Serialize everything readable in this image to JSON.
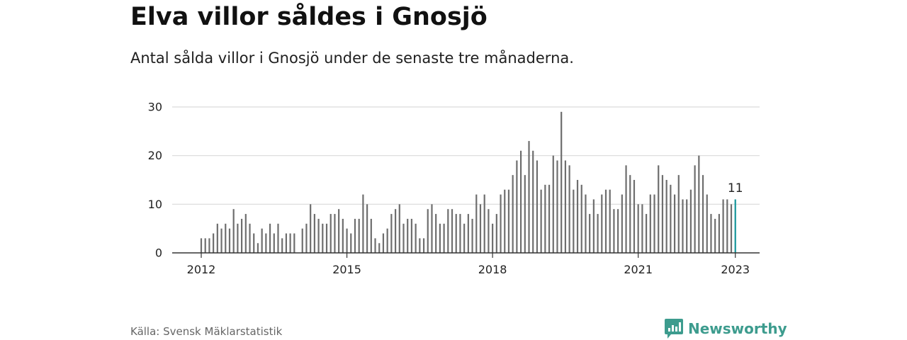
{
  "header": {
    "title": "Elva villor såldes i Gnosjö",
    "subtitle": "Antal sålda villor i Gnosjö under de senaste tre månaderna."
  },
  "footer": {
    "source": "Källa: Svensk Mäklarstatistik",
    "brand": "Newsworthy"
  },
  "colors": {
    "bar": "#6e6e6e",
    "highlight": "#15959a",
    "grid": "#d9d9d9",
    "axis": "#333333",
    "brand": "#3d9c8e"
  },
  "chart_data": {
    "type": "bar",
    "x_start": "2012-01",
    "frequency": "monthly",
    "values": [
      3,
      3,
      3,
      4,
      6,
      5,
      6,
      5,
      9,
      6,
      7,
      8,
      6,
      4,
      2,
      5,
      4,
      6,
      4,
      6,
      3,
      4,
      4,
      4,
      null,
      5,
      6,
      10,
      8,
      7,
      6,
      6,
      8,
      8,
      9,
      7,
      5,
      4,
      7,
      7,
      12,
      10,
      7,
      3,
      2,
      4,
      5,
      8,
      9,
      10,
      6,
      7,
      7,
      6,
      3,
      3,
      9,
      10,
      8,
      6,
      6,
      9,
      9,
      8,
      8,
      6,
      8,
      7,
      12,
      10,
      12,
      9,
      6,
      8,
      12,
      13,
      13,
      16,
      19,
      21,
      16,
      23,
      21,
      19,
      13,
      14,
      14,
      20,
      19,
      29,
      19,
      18,
      13,
      15,
      14,
      12,
      8,
      11,
      8,
      12,
      13,
      13,
      9,
      9,
      12,
      18,
      16,
      15,
      10,
      10,
      8,
      12,
      12,
      18,
      16,
      15,
      14,
      12,
      16,
      11,
      11,
      13,
      18,
      20,
      16,
      12,
      8,
      7,
      8,
      11,
      11,
      10,
      11
    ],
    "highlight": {
      "x": "2023-01",
      "value": 11,
      "label": "11"
    },
    "xticks": [
      "2012",
      "2015",
      "2018",
      "2021",
      "2023"
    ],
    "yticks": [
      "0",
      "10",
      "20",
      "30"
    ],
    "ylim": [
      0,
      30
    ],
    "grid": true
  }
}
